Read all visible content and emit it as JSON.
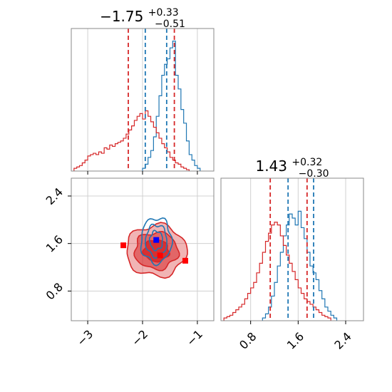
{
  "chart_data": [
    {
      "panel": "marginal-x",
      "type": "histogram",
      "title": {
        "main": "−1.75",
        "sup": "+0.33",
        "sub": "−0.51"
      },
      "xlim": [
        -3.3,
        -0.7
      ],
      "xticks": [
        -3,
        -2,
        -1
      ],
      "grid": true,
      "series": [
        {
          "color": "#1f77b4",
          "bin_start": -2.0,
          "bin_width": 0.05,
          "values": [
            0.02,
            0.05,
            0.1,
            0.15,
            0.25,
            0.4,
            0.55,
            0.7,
            0.78,
            0.82,
            0.9,
            0.95,
            0.7,
            0.6,
            0.45,
            0.35,
            0.22,
            0.12,
            0.08,
            0.04,
            0.02
          ],
          "intervals": [
            -1.95,
            -1.56
          ]
        },
        {
          "color": "#d62728",
          "bin_start": -3.25,
          "bin_width": 0.05,
          "values": [
            0.02,
            0.03,
            0.04,
            0.06,
            0.08,
            0.11,
            0.12,
            0.13,
            0.12,
            0.14,
            0.13,
            0.17,
            0.16,
            0.19,
            0.18,
            0.2,
            0.21,
            0.22,
            0.24,
            0.27,
            0.3,
            0.33,
            0.37,
            0.4,
            0.42,
            0.38,
            0.44,
            0.4,
            0.36,
            0.32,
            0.28,
            0.24,
            0.2,
            0.17,
            0.14,
            0.1,
            0.08,
            0.06,
            0.05,
            0.03,
            0.02,
            0.01
          ],
          "intervals": [
            -2.26,
            -1.42
          ]
        }
      ]
    },
    {
      "panel": "joint",
      "type": "contour",
      "xlim": [
        -3.3,
        -0.7
      ],
      "ylim": [
        0.3,
        2.7
      ],
      "xticks": [
        -3,
        -2,
        -1
      ],
      "yticks": [
        0.8,
        1.6,
        2.4
      ],
      "grid": true,
      "blue_center": [
        -1.75,
        1.65
      ],
      "blue_spread": [
        0.28,
        0.38
      ],
      "red_center": [
        -1.75,
        1.48
      ],
      "red_spread": [
        0.55,
        0.43
      ],
      "markers": [
        {
          "color": "#0000ff",
          "x": -1.75,
          "y": 1.66
        },
        {
          "color": "#ff0000",
          "x": -2.35,
          "y": 1.57
        },
        {
          "color": "#ff0000",
          "x": -1.68,
          "y": 1.4
        },
        {
          "color": "#ff0000",
          "x": -1.22,
          "y": 1.31
        }
      ]
    },
    {
      "panel": "marginal-y",
      "type": "histogram",
      "title": {
        "main": "1.43",
        "sup": "+0.32",
        "sub": "−0.30"
      },
      "xlim": [
        0.3,
        2.7
      ],
      "xticks": [
        0.8,
        1.6,
        2.4
      ],
      "grid": true,
      "series": [
        {
          "color": "#1f77b4",
          "bin_start": 1.0,
          "bin_width": 0.05,
          "values": [
            0.02,
            0.05,
            0.1,
            0.18,
            0.28,
            0.4,
            0.5,
            0.62,
            0.7,
            0.78,
            0.75,
            0.7,
            0.8,
            0.68,
            0.6,
            0.5,
            0.4,
            0.35,
            0.3,
            0.22,
            0.16,
            0.1,
            0.07,
            0.04,
            0.02
          ],
          "intervals": [
            1.43,
            1.86
          ]
        },
        {
          "color": "#d62728",
          "bin_start": 0.35,
          "bin_width": 0.05,
          "values": [
            0.02,
            0.03,
            0.04,
            0.06,
            0.08,
            0.1,
            0.12,
            0.16,
            0.2,
            0.24,
            0.28,
            0.35,
            0.42,
            0.5,
            0.58,
            0.64,
            0.7,
            0.72,
            0.7,
            0.62,
            0.55,
            0.48,
            0.42,
            0.36,
            0.3,
            0.24,
            0.2,
            0.16,
            0.14,
            0.12,
            0.1,
            0.08,
            0.06,
            0.04,
            0.03,
            0.02
          ],
          "intervals": [
            1.13,
            1.75
          ]
        }
      ]
    }
  ]
}
